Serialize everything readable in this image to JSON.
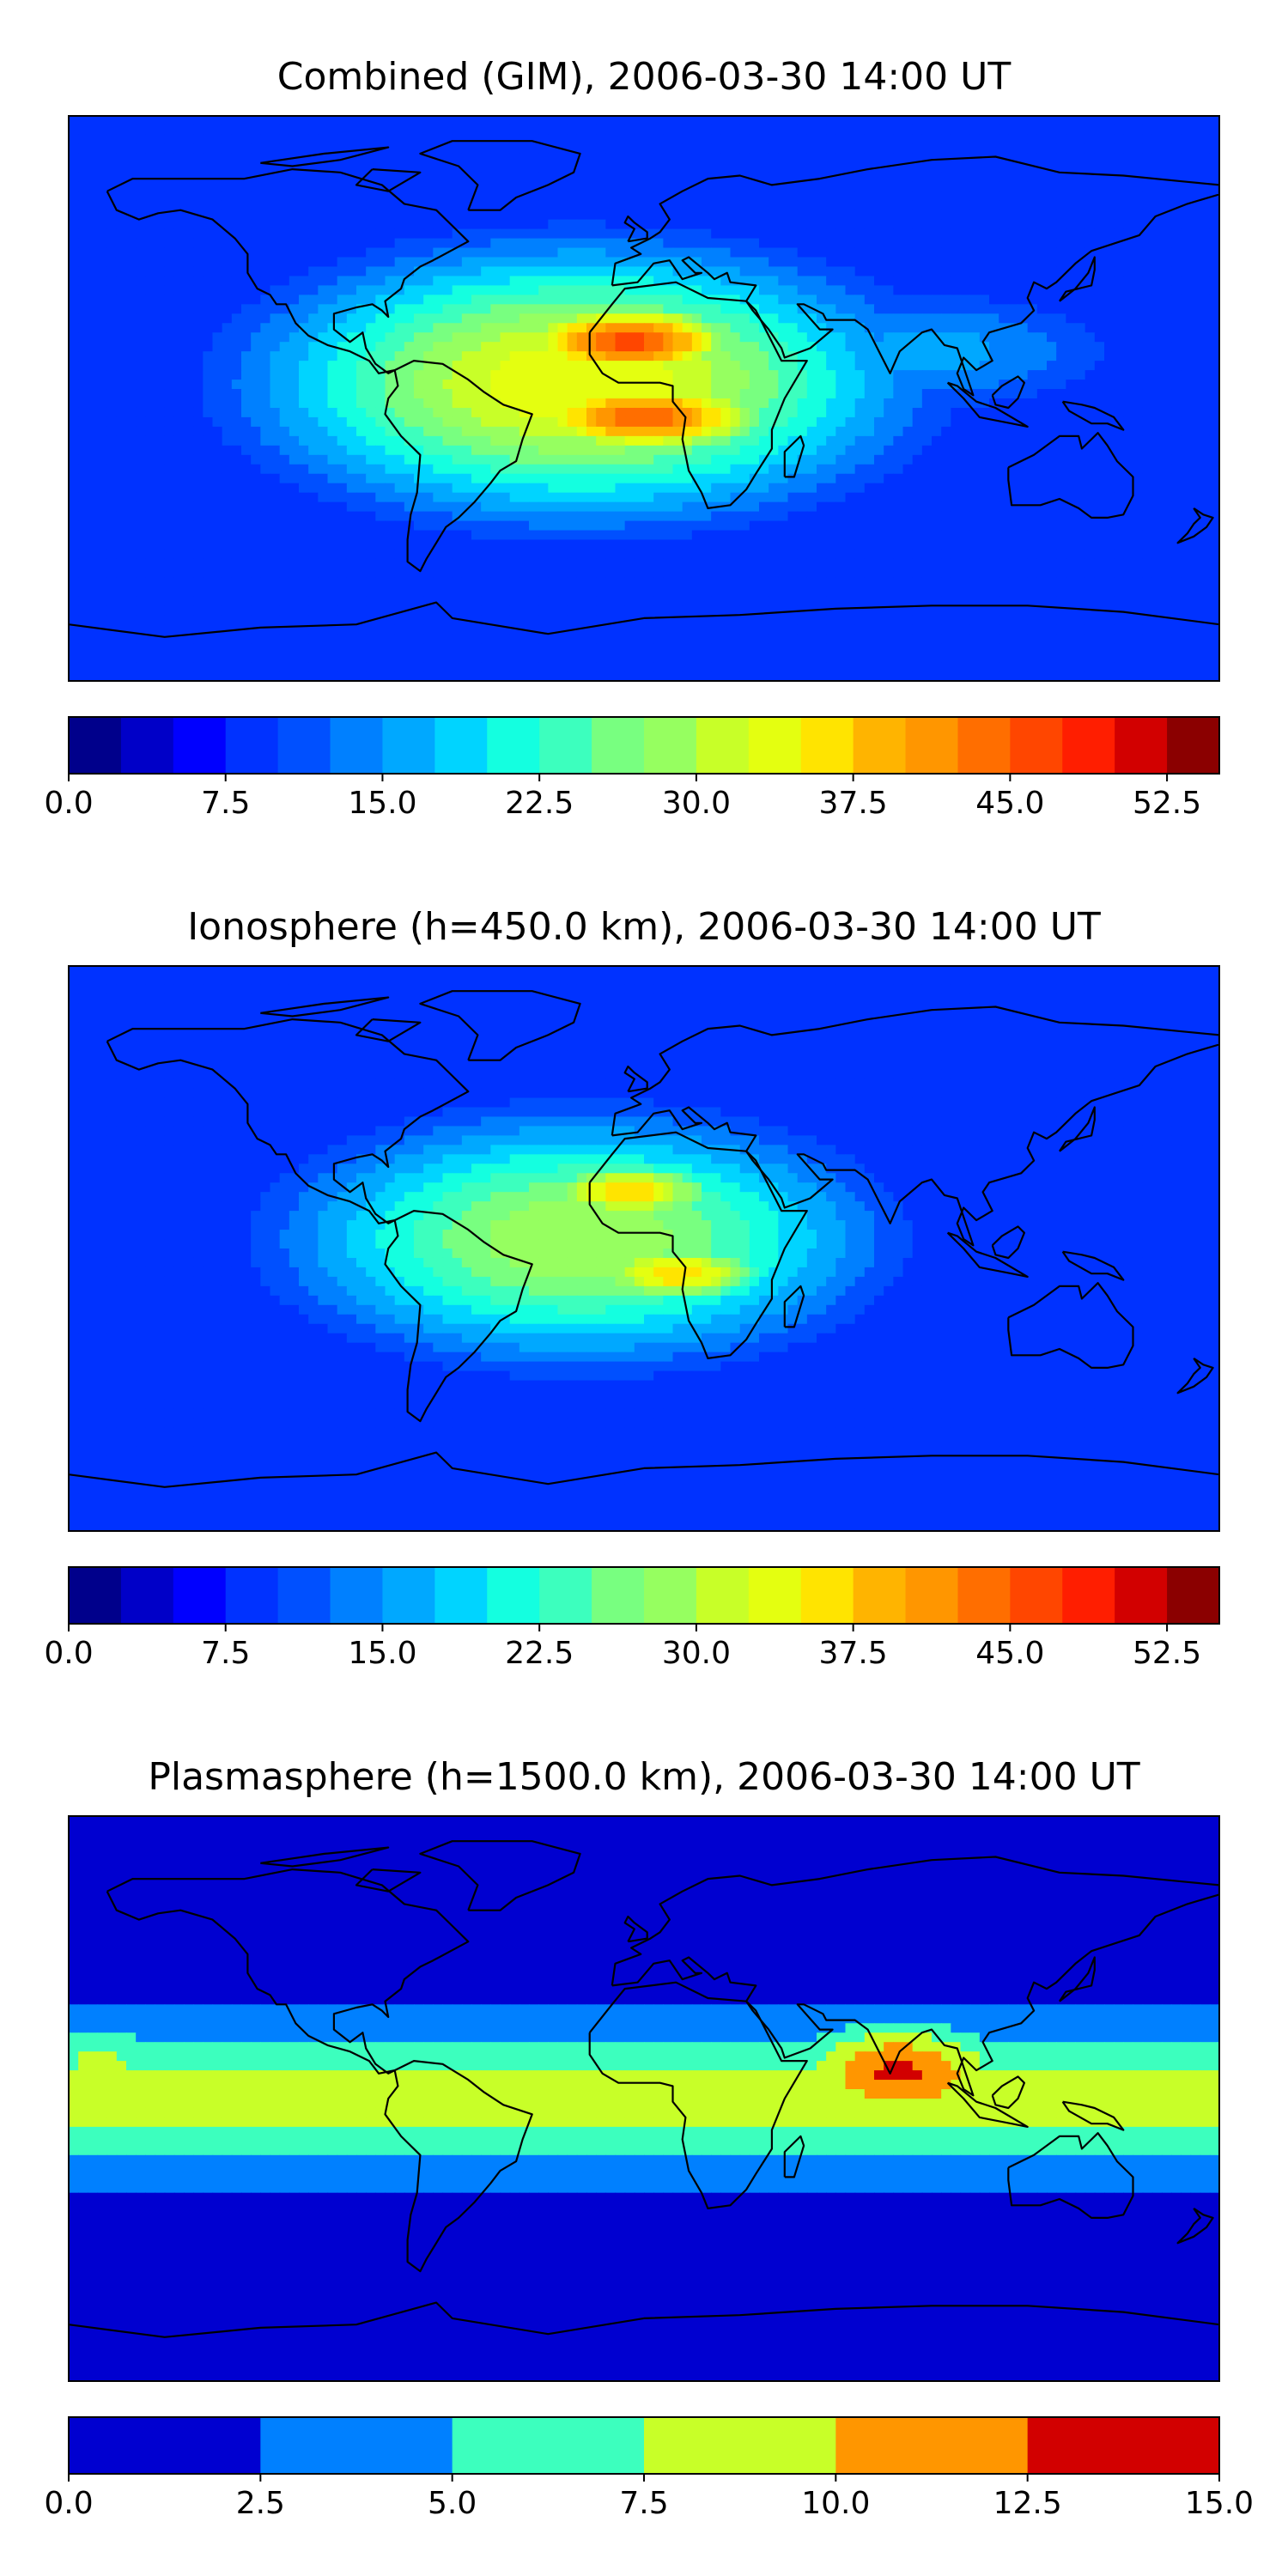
{
  "chart_data": [
    {
      "type": "heatmap",
      "title": "Combined (GIM), 2006-03-30 14:00 UT",
      "xlabel": "",
      "ylabel": "",
      "colorbar": {
        "range": [
          0,
          55
        ],
        "levels": 22,
        "colors": [
          "#00008b",
          "#0000c8",
          "#0000ff",
          "#0032ff",
          "#0050ff",
          "#0080ff",
          "#00a8ff",
          "#00d4ff",
          "#14ffe0",
          "#3cffbe",
          "#78ff80",
          "#96ff60",
          "#c8ff28",
          "#e4ff10",
          "#ffe400",
          "#ffb400",
          "#ff9600",
          "#ff6e00",
          "#ff4600",
          "#ff1e00",
          "#d20000",
          "#8b0000"
        ],
        "ticks": [
          0.0,
          7.5,
          15.0,
          22.5,
          30.0,
          37.5,
          45.0,
          52.5
        ],
        "tick_labels": [
          "0.0",
          "7.5",
          "15.0",
          "22.5",
          "30.0",
          "37.5",
          "45.0",
          "52.5"
        ]
      },
      "background_level": 3,
      "features": [
        {
          "lon": -20,
          "lat": 5,
          "value": 35,
          "spread_lon": 75,
          "spread_lat": 32
        },
        {
          "lon": -5,
          "lat": 18,
          "value": 46,
          "spread_lon": 30,
          "spread_lat": 10
        },
        {
          "lon": 0,
          "lat": -6,
          "value": 44,
          "spread_lon": 35,
          "spread_lat": 10
        },
        {
          "lon": 90,
          "lat": 15,
          "value": 16,
          "spread_lon": 55,
          "spread_lat": 18
        },
        {
          "lon": -110,
          "lat": -35,
          "value": 6,
          "spread_lon": 40,
          "spread_lat": 20
        },
        {
          "lon": 140,
          "lat": -40,
          "value": 5,
          "spread_lon": 50,
          "spread_lat": 25
        }
      ]
    },
    {
      "type": "heatmap",
      "title": "Ionosphere  (h=450.0 km), 2006-03-30 14:00 UT",
      "xlabel": "",
      "ylabel": "",
      "colorbar": {
        "range": [
          0,
          55
        ],
        "levels": 22,
        "colors": [
          "#00008b",
          "#0000c8",
          "#0000ff",
          "#0032ff",
          "#0050ff",
          "#0080ff",
          "#00a8ff",
          "#00d4ff",
          "#14ffe0",
          "#3cffbe",
          "#78ff80",
          "#96ff60",
          "#c8ff28",
          "#e4ff10",
          "#ffe400",
          "#ffb400",
          "#ff9600",
          "#ff6e00",
          "#ff4600",
          "#ff1e00",
          "#d20000",
          "#8b0000"
        ],
        "ticks": [
          0.0,
          7.5,
          15.0,
          22.5,
          30.0,
          37.5,
          45.0,
          52.5
        ],
        "tick_labels": [
          "0.0",
          "7.5",
          "15.0",
          "22.5",
          "30.0",
          "37.5",
          "45.0",
          "52.5"
        ]
      },
      "background_level": 3,
      "features": [
        {
          "lon": -20,
          "lat": 3,
          "value": 30,
          "spread_lon": 70,
          "spread_lat": 30
        },
        {
          "lon": -5,
          "lat": 18,
          "value": 37,
          "spread_lon": 25,
          "spread_lat": 8
        },
        {
          "lon": 10,
          "lat": -8,
          "value": 37,
          "spread_lon": 25,
          "spread_lat": 8
        },
        {
          "lon": 140,
          "lat": 15,
          "value": 1,
          "spread_lon": 40,
          "spread_lat": 12
        },
        {
          "lon": -150,
          "lat": 0,
          "value": 2,
          "spread_lon": 30,
          "spread_lat": 40
        }
      ]
    },
    {
      "type": "heatmap",
      "title": "Plasmasphere (h=1500.0 km), 2006-03-30 14:00 UT",
      "xlabel": "",
      "ylabel": "",
      "colorbar": {
        "range": [
          0,
          15
        ],
        "levels": 6,
        "colors": [
          "#0000d0",
          "#0080ff",
          "#3cffbe",
          "#c8ff28",
          "#ff9600",
          "#d20000"
        ],
        "ticks": [
          0.0,
          2.5,
          5.0,
          7.5,
          10.0,
          12.5,
          15.0
        ],
        "tick_labels": [
          "0.0",
          "2.5",
          "5.0",
          "7.5",
          "10.0",
          "12.5",
          "15.0"
        ]
      },
      "background_level": 0,
      "band": {
        "center_lat": 0,
        "value": 7.6,
        "half_width_lat": 28
      },
      "features": [
        {
          "lon": 80,
          "lat": 8,
          "value": 13,
          "spread_lon": 25,
          "spread_lat": 12
        },
        {
          "lon": 120,
          "lat": 0,
          "value": 9.5,
          "spread_lon": 60,
          "spread_lat": 12
        },
        {
          "lon": -50,
          "lat": -5,
          "value": 8.5,
          "spread_lon": 25,
          "spread_lat": 10
        },
        {
          "lon": -170,
          "lat": 10,
          "value": 8.5,
          "spread_lon": 15,
          "spread_lat": 12
        }
      ]
    }
  ]
}
